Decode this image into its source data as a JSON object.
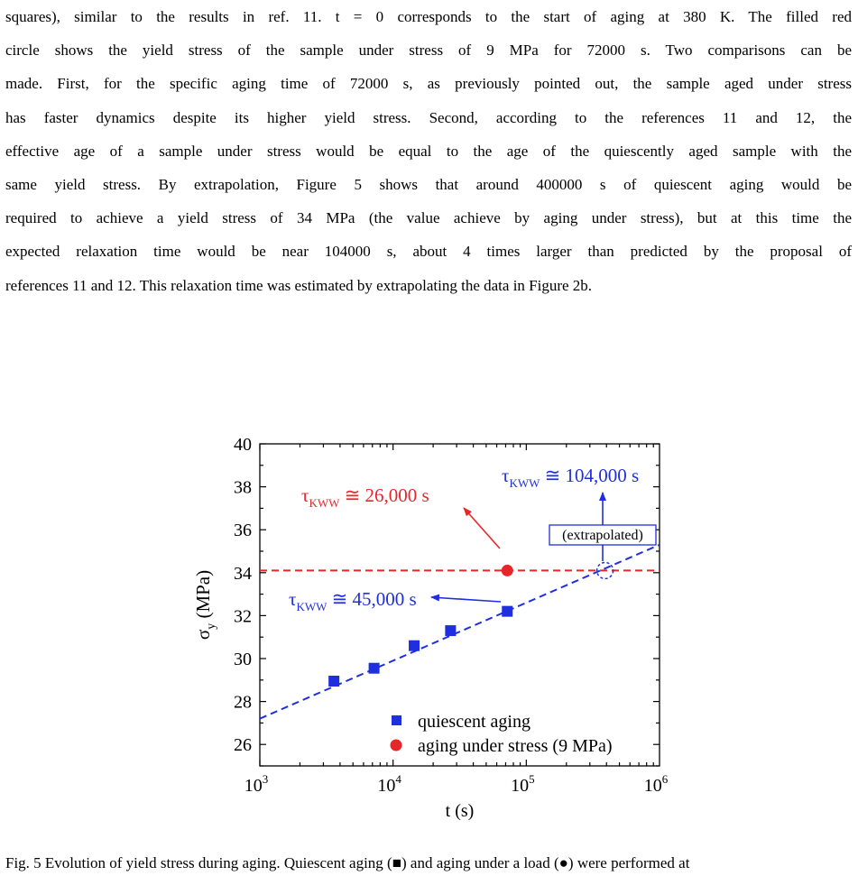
{
  "paragraph": {
    "lines": [
      "squares), similar to the results in ref. 11.  t = 0 corresponds to the start of aging at 380 K. The filled red",
      "circle shows the yield stress of the sample under stress of 9 MPa for 72000 s. Two comparisons can be",
      "made. First, for the specific aging time of 72000 s, as previously pointed out, the sample aged under stress",
      "has faster dynamics despite its higher yield stress. Second, according to the references 11 and 12, the",
      "effective age of a sample under stress would be equal to the age of the quiescently aged sample with the",
      "same yield stress.  By extrapolation, Figure 5 shows that around 400000 s of quiescent aging would be",
      "required to achieve a yield stress of 34 MPa (the value achieve by aging under stress), but at this time the",
      "expected relaxation time would be near 104000 s, about 4 times larger than predicted by the proposal of",
      "references 11 and 12.  This relaxation time was estimated by extrapolating the data in Figure 2b."
    ]
  },
  "chart_data": {
    "type": "scatter",
    "x_scale": "log",
    "xlim": [
      1000,
      1000000
    ],
    "ylim": [
      25,
      40
    ],
    "xlabel": "t (s)",
    "ylabel_main": "σ",
    "ylabel_sub": "y",
    "ylabel_unit": " (MPa)",
    "x_ticks": [
      {
        "value": 1000,
        "base": "10",
        "exp": "3"
      },
      {
        "value": 10000,
        "base": "10",
        "exp": "4"
      },
      {
        "value": 100000,
        "base": "10",
        "exp": "5"
      },
      {
        "value": 1000000,
        "base": "10",
        "exp": "6"
      }
    ],
    "y_ticks": [
      26,
      28,
      30,
      32,
      34,
      36,
      38,
      40
    ],
    "series": [
      {
        "name": "quiescent aging",
        "marker": "square",
        "color": "#1f2fe0",
        "x": [
          3600,
          7200,
          14400,
          27000,
          72000
        ],
        "y": [
          28.95,
          29.55,
          30.6,
          31.3,
          32.2
        ]
      },
      {
        "name": "aging under stress (9 MPa)",
        "marker": "circle",
        "color": "#e8262a",
        "x": [
          72000
        ],
        "y": [
          34.1
        ]
      }
    ],
    "fit_line": {
      "color": "#1f2fe0",
      "x": [
        1000,
        1000000
      ],
      "y": [
        27.2,
        35.3
      ]
    },
    "reference_line": {
      "color": "#e8262a",
      "y": 34.1
    },
    "extrapolated_point": {
      "x": 390000,
      "y": 34.1,
      "color": "#1f2fe0"
    },
    "annotations": {
      "red": {
        "tau": "τ",
        "sub": "KWW",
        "rest": " ≅ 26,000 s",
        "color": "#e8262a"
      },
      "blue_top": {
        "tau": "τ",
        "sub": "KWW",
        "rest": " ≅ 104,000 s",
        "color": "#1f2fe0"
      },
      "blue_mid": {
        "tau": "τ",
        "sub": "KWW",
        "rest": " ≅ 45,000 s",
        "color": "#1f2fe0"
      },
      "box": "(extrapolated)"
    },
    "legend": {
      "placement": "bottom-right"
    }
  },
  "caption": {
    "text": "Fig. 5 Evolution of yield stress during aging.  Quiescent aging (■) and aging under a load (●) were performed at"
  }
}
